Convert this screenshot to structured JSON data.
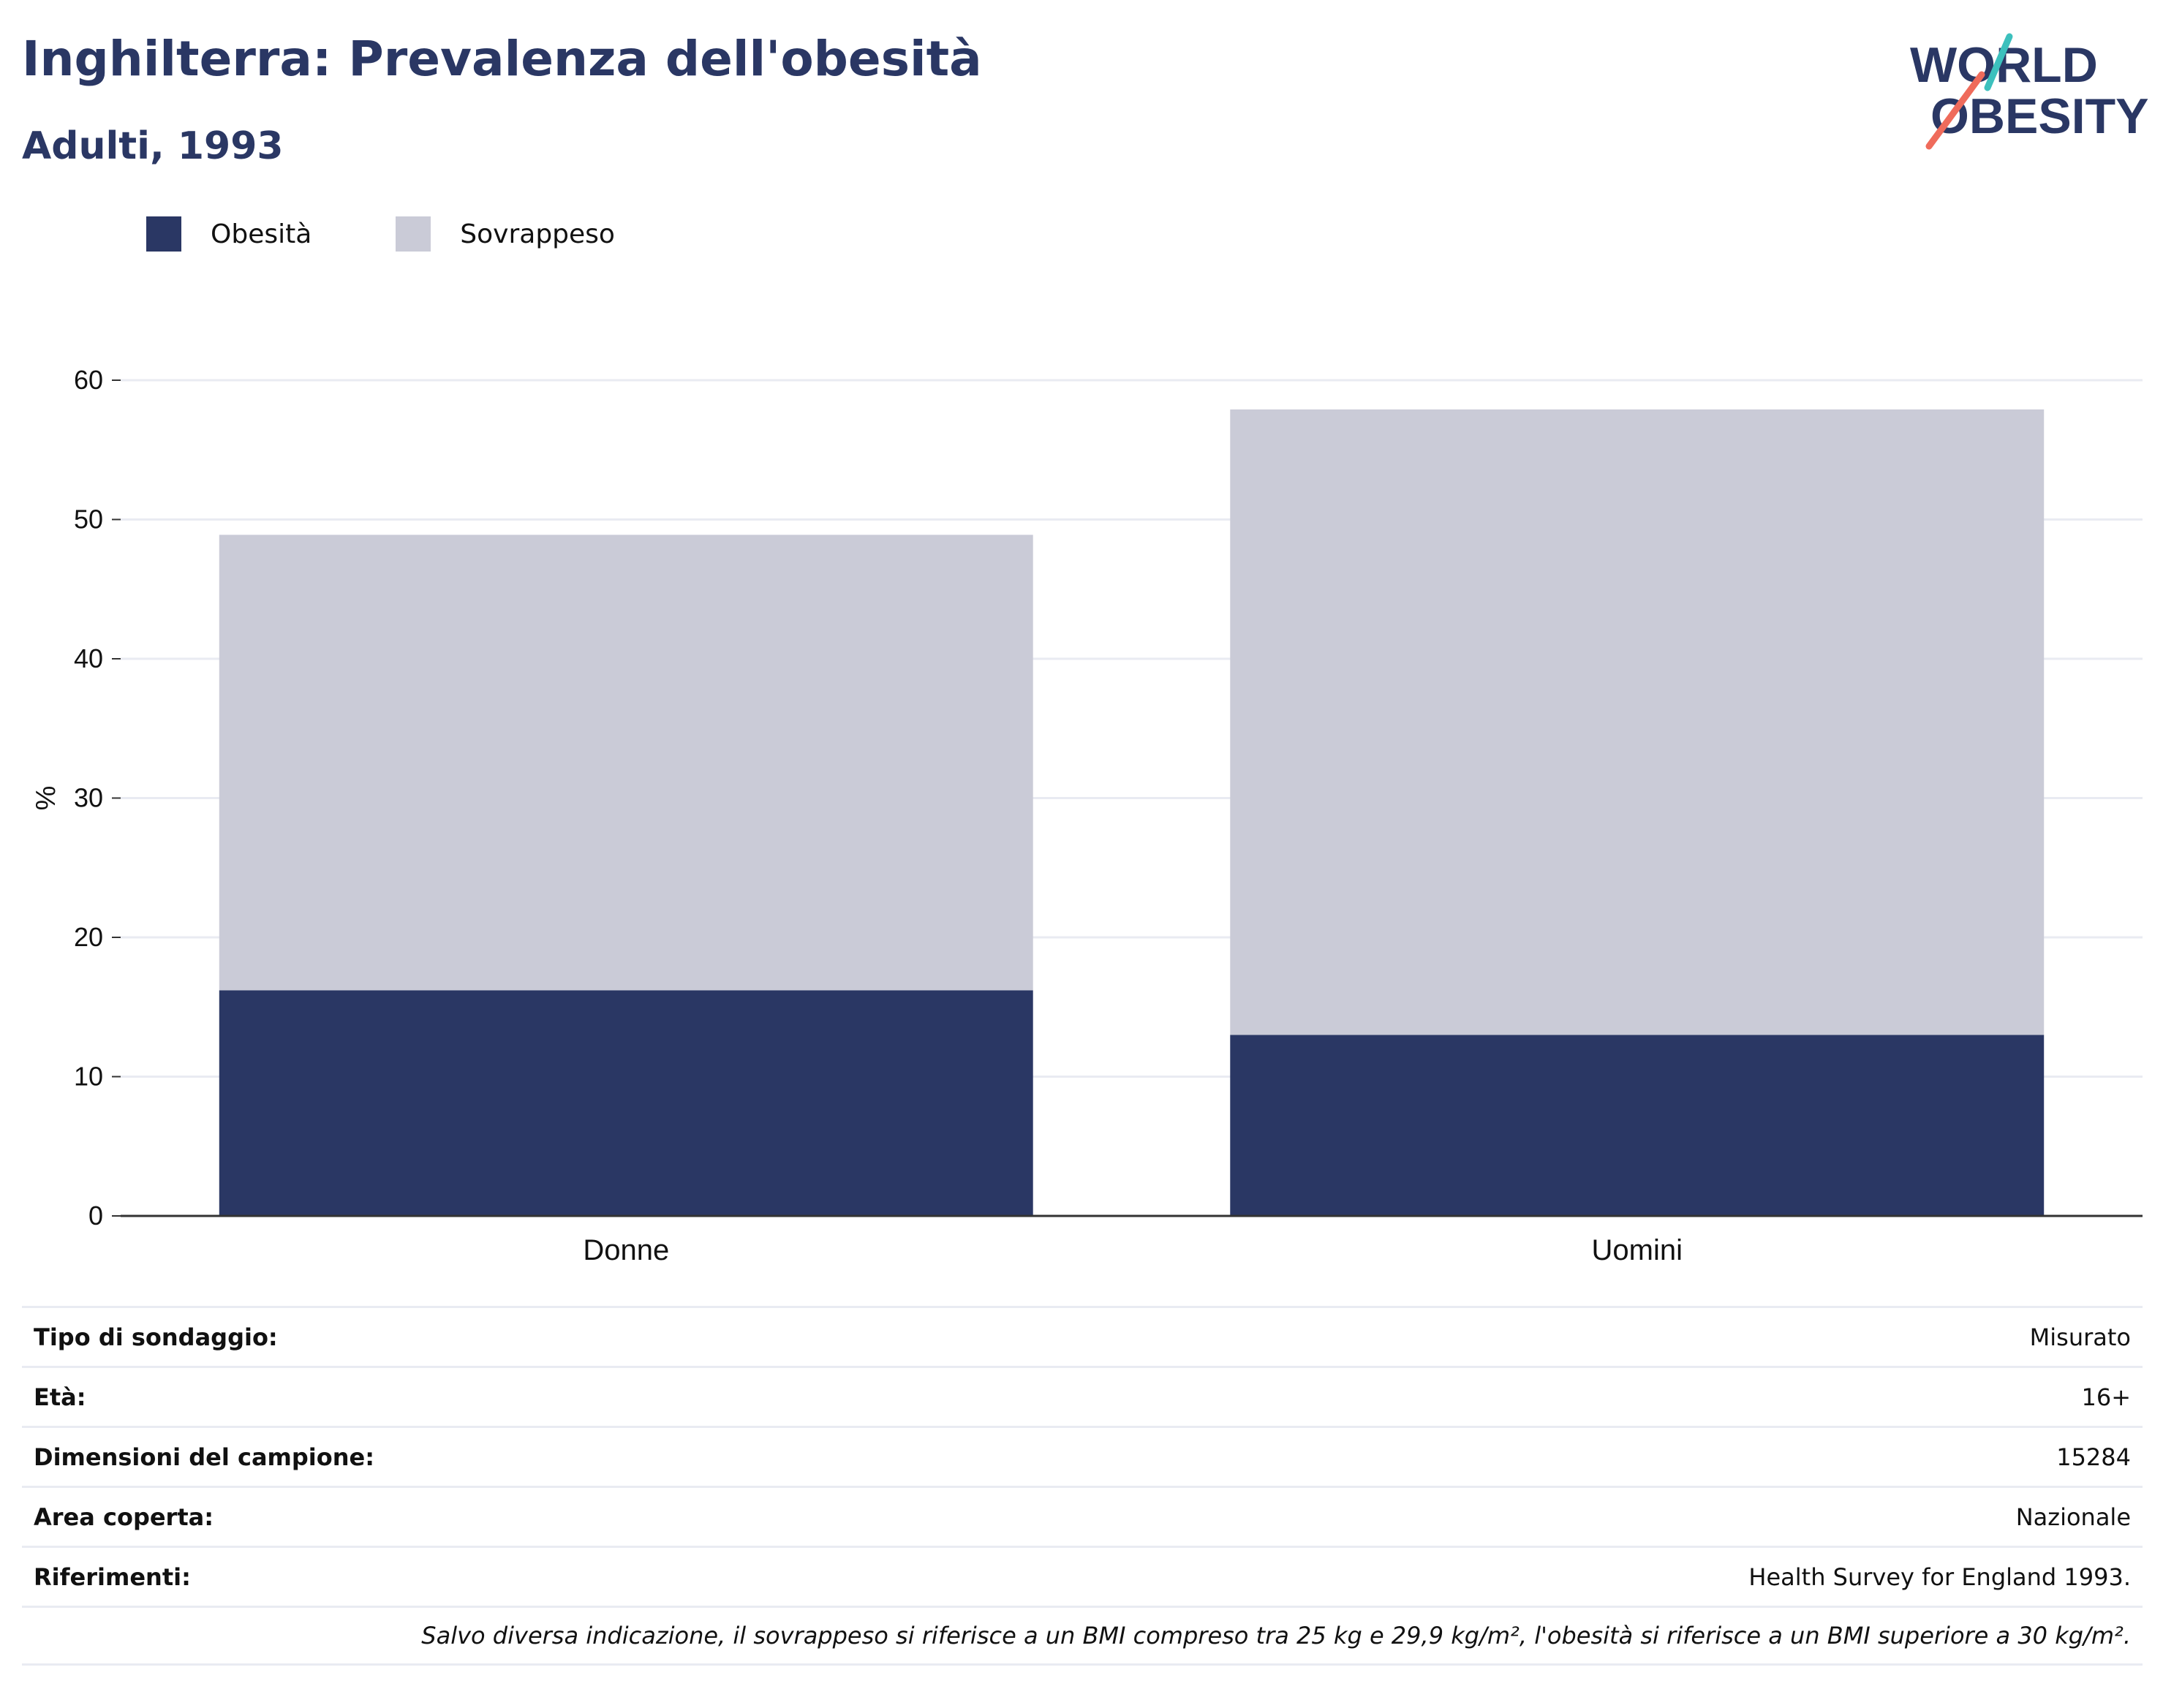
{
  "header": {
    "title": "Inghilterra: Prevalenza dell'obesità",
    "subtitle": "Adulti, 1993"
  },
  "logo": {
    "line1": "WORLD",
    "line2": "OBESITY",
    "accent_teal": "#3cc0bd",
    "accent_coral": "#ef6b5b"
  },
  "colors": {
    "obesity": "#2a3764",
    "overweight": "#cacbd7",
    "grid": "#e9ebf2",
    "axis": "#333333"
  },
  "legend": {
    "items": [
      {
        "label": "Obesità"
      },
      {
        "label": "Sovrappeso"
      }
    ]
  },
  "chart_data": {
    "type": "bar",
    "stacked": true,
    "categories": [
      "Donne",
      "Uomini"
    ],
    "series": [
      {
        "name": "Obesità",
        "values": [
          16.2,
          13.0
        ]
      },
      {
        "name": "Sovrappeso",
        "values": [
          32.7,
          44.9
        ]
      }
    ],
    "ylabel": "%",
    "ylim": [
      0,
      60
    ],
    "yticks": [
      0,
      10,
      20,
      30,
      40,
      50,
      60
    ],
    "grid": true,
    "legend_position": "top-left"
  },
  "meta": {
    "rows": [
      {
        "key": "Tipo di sondaggio:",
        "value": "Misurato"
      },
      {
        "key": "Età:",
        "value": "16+"
      },
      {
        "key": "Dimensioni del campione:",
        "value": "15284"
      },
      {
        "key": "Area coperta:",
        "value": "Nazionale"
      },
      {
        "key": "Riferimenti:",
        "value": "Health Survey for England 1993."
      }
    ],
    "note": "Salvo diversa indicazione, il sovrappeso si riferisce a un BMI compreso tra 25 kg e 29,9 kg/m², l'obesità si riferisce a un BMI superiore a 30 kg/m²."
  }
}
